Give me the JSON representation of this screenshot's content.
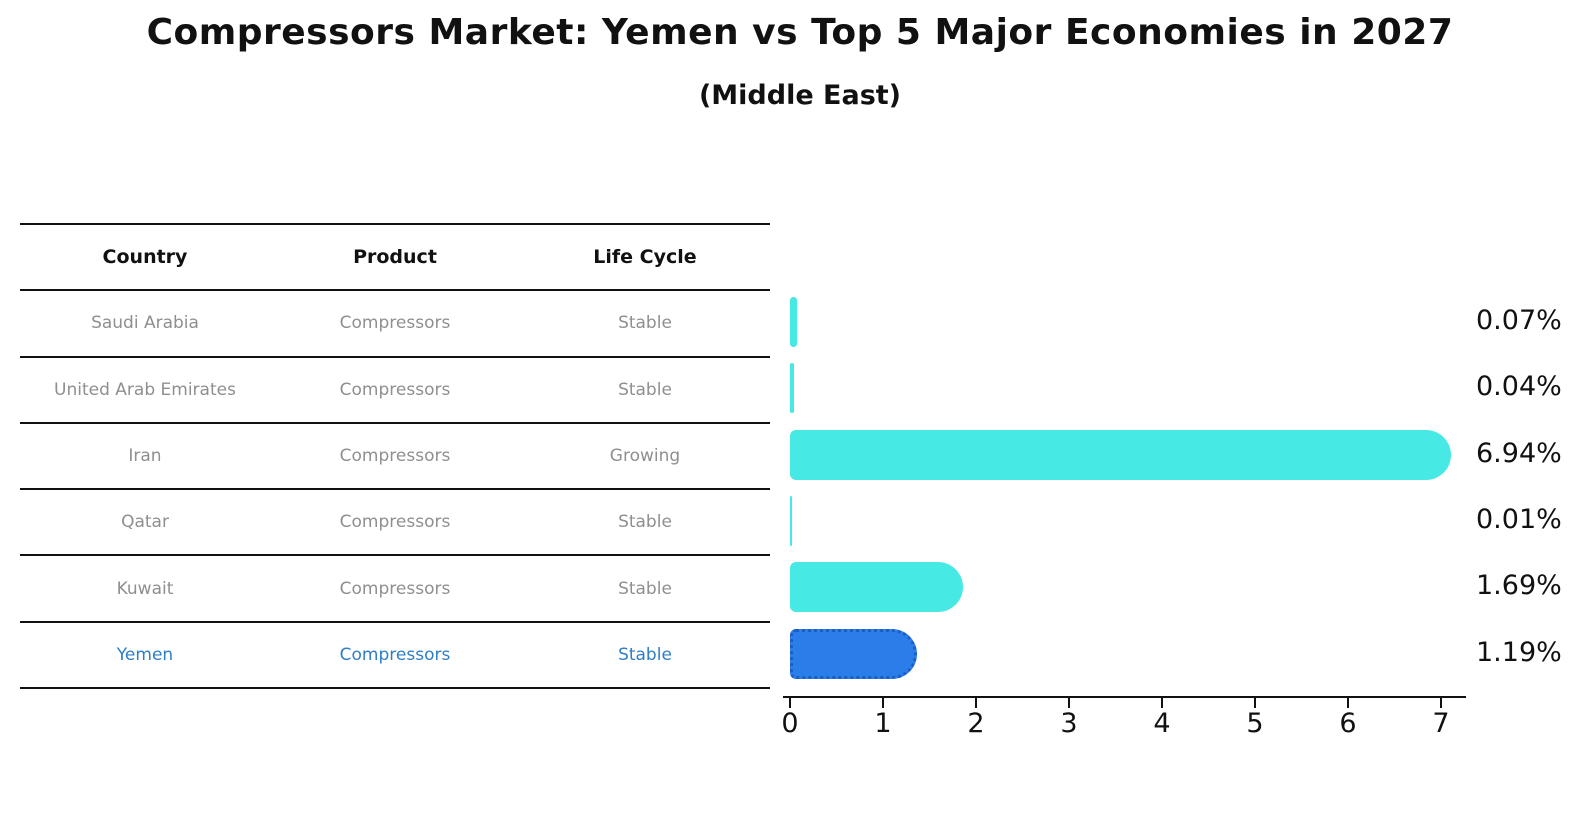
{
  "title": "Compressors Market: Yemen vs Top 5 Major Economies in 2027",
  "subtitle": "(Middle East)",
  "table": {
    "headers": [
      "Country",
      "Product",
      "Life Cycle"
    ],
    "rows": [
      {
        "country": "Saudi Arabia",
        "product": "Compressors",
        "life_cycle": "Stable"
      },
      {
        "country": "United Arab Emirates",
        "product": "Compressors",
        "life_cycle": "Stable"
      },
      {
        "country": "Iran",
        "product": "Compressors",
        "life_cycle": "Growing"
      },
      {
        "country": "Qatar",
        "product": "Compressors",
        "life_cycle": "Stable"
      },
      {
        "country": "Kuwait",
        "product": "Compressors",
        "life_cycle": "Stable"
      },
      {
        "country": "Yemen",
        "product": "Compressors",
        "life_cycle": "Stable"
      }
    ]
  },
  "chart_data": {
    "type": "bar",
    "orientation": "horizontal",
    "categories": [
      "Saudi Arabia",
      "United Arab Emirates",
      "Iran",
      "Qatar",
      "Kuwait",
      "Yemen"
    ],
    "values": [
      0.07,
      0.04,
      6.94,
      0.01,
      1.69,
      1.19
    ],
    "value_labels": [
      "0.07%",
      "0.04%",
      "6.94%",
      "0.01%",
      "1.69%",
      "1.19%"
    ],
    "x_ticks": [
      "0",
      "1",
      "2",
      "3",
      "4",
      "5",
      "6",
      "7"
    ],
    "xlim": [
      0,
      7.3
    ],
    "grid": false,
    "legend": "none",
    "bar_color": "#47e9e4",
    "highlight_index": 5,
    "highlight_color": "#2b7de9",
    "highlight_border_color": "#1a5fc8",
    "highlight_text_color": "#2e7ec7",
    "axis_color": "#111111",
    "muted_text_color": "#8f8f8f"
  }
}
